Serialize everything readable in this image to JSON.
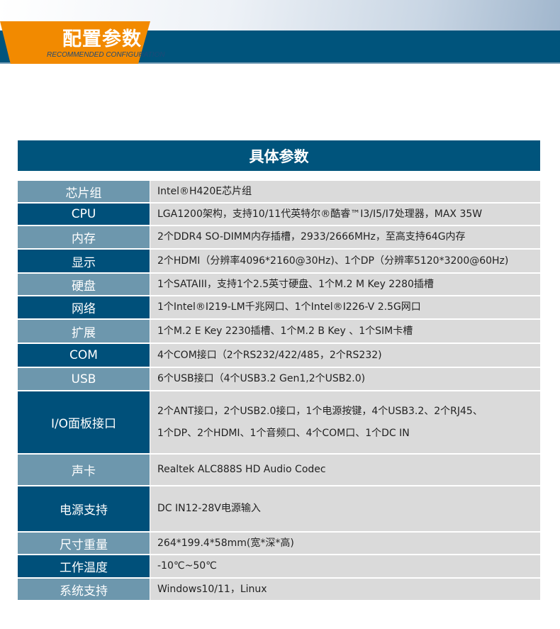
{
  "banner": {
    "title": "配置参数",
    "subtitle": "RECOMMENDED CONFIGURATION",
    "accent": "#f28a00",
    "brand": "#00547c"
  },
  "section_title": "具体参数",
  "specs": [
    {
      "label": "芯片组",
      "value": [
        "Intel®H420E芯片组"
      ],
      "tone": "light",
      "h": 32
    },
    {
      "label": "CPU",
      "value": [
        "LGA1200架构，支持10/11代英特尔®酷睿™I3/I5/I7处理器，MAX 35W"
      ],
      "tone": "dark",
      "h": 32
    },
    {
      "label": "内存",
      "value": [
        "2个DDR4 SO-DIMM内存插槽，2933/2666MHz，至高支持64G内存"
      ],
      "tone": "light",
      "h": 33
    },
    {
      "label": "显示",
      "value": [
        "2个HDMI（分辨率4096*2160@30Hz)、1个DP（分辨率5120*3200@60Hz)"
      ],
      "tone": "dark",
      "h": 34
    },
    {
      "label": "硬盘",
      "value": [
        "1个SATAIII，支持1个2.5英寸硬盘、1个M.2 M Key 2280插槽"
      ],
      "tone": "light",
      "h": 32
    },
    {
      "label": "网络",
      "value": [
        "1个Intel®I219-LM千兆网口、1个Intel®I226-V 2.5G网口"
      ],
      "tone": "dark",
      "h": 33
    },
    {
      "label": "扩展",
      "value": [
        "1个M.2 E Key 2230插槽、1个M.2 B Key 、1个SIM卡槽"
      ],
      "tone": "light",
      "h": 34
    },
    {
      "label": "COM",
      "value": [
        "4个COM接口（2个RS232/422/485，2个RS232)"
      ],
      "tone": "dark",
      "h": 34
    },
    {
      "label": "USB",
      "value": [
        "6个USB接口（4个USB3.2 Gen1,2个USB2.0)"
      ],
      "tone": "light",
      "h": 33
    },
    {
      "label": "I/O面板接口",
      "value": [
        "2个ANT接口，2个USB2.0接口，1个电源按键，4个USB3.2、2个RJ45、",
        "1个DP、2个HDMI、1个音频口、4个COM口、1个DC IN"
      ],
      "tone": "dark",
      "h": 89
    },
    {
      "label": "声卡",
      "value": [
        "Realtek ALC888S HD Audio Codec"
      ],
      "tone": "light",
      "h": 45
    },
    {
      "label": "电源支持",
      "value": [
        "DC IN12-28V电源输入"
      ],
      "tone": "dark",
      "h": 65
    },
    {
      "label": "尺寸重量",
      "value": [
        "264*199.4*58mm(宽*深*高)"
      ],
      "tone": "light",
      "h": 32
    },
    {
      "label": "工作温度",
      "value": [
        "-10℃~50℃"
      ],
      "tone": "dark",
      "h": 33
    },
    {
      "label": "系统支持",
      "value": [
        "Windows10/11，Linux"
      ],
      "tone": "light",
      "h": 32
    }
  ]
}
